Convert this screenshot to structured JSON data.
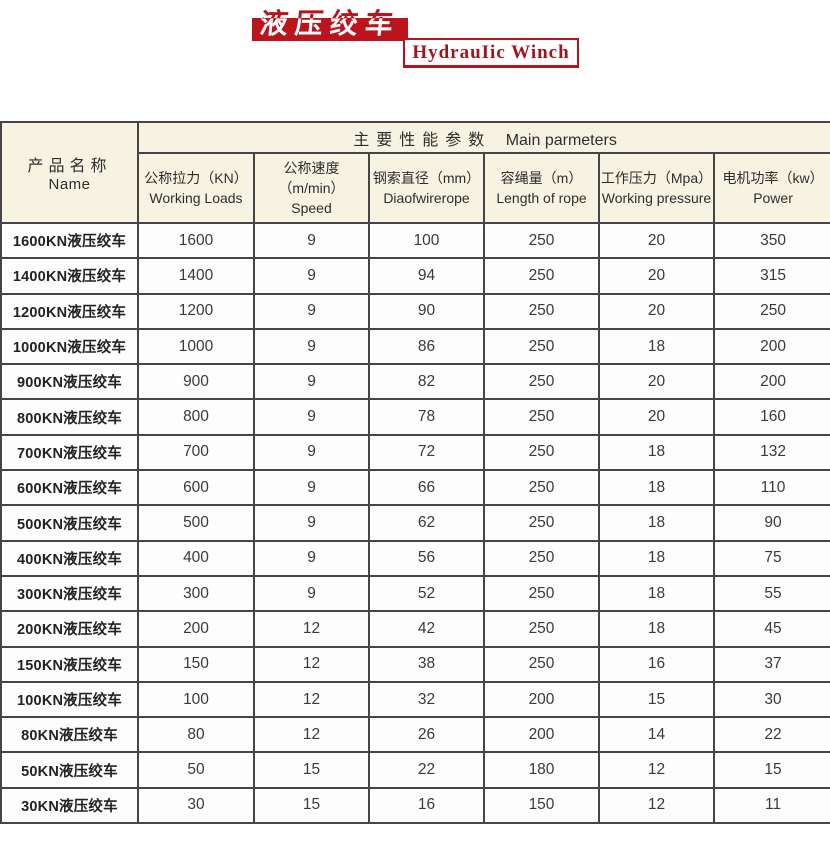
{
  "page": {
    "title_cn": "液压绞车",
    "title_en": "HydrauIic Winch"
  },
  "table": {
    "product_col_header": {
      "cn": "产品名称",
      "en": "Name"
    },
    "group_header": {
      "cn": "主要性能参数",
      "en": "Main parmeters"
    },
    "columns": [
      {
        "cn": "公称拉力（KN）",
        "cn2": "",
        "en": "Working Loads"
      },
      {
        "cn": "公称速度",
        "cn2": "（m/min）",
        "en": "Speed"
      },
      {
        "cn": "钢索直径（mm）",
        "cn2": "",
        "en": "Diaofwirerope"
      },
      {
        "cn": "容绳量（m）",
        "cn2": "",
        "en": "Length of rope"
      },
      {
        "cn": "工作压力（Mpa）",
        "cn2": "",
        "en": "Working pressure"
      },
      {
        "cn": "电机功率（kw）",
        "cn2": "",
        "en": "Power"
      }
    ],
    "rows": [
      {
        "name": "1600KN液压绞车",
        "values": [
          "1600",
          "9",
          "100",
          "250",
          "20",
          "350"
        ]
      },
      {
        "name": "1400KN液压绞车",
        "values": [
          "1400",
          "9",
          "94",
          "250",
          "20",
          "315"
        ]
      },
      {
        "name": "1200KN液压绞车",
        "values": [
          "1200",
          "9",
          "90",
          "250",
          "20",
          "250"
        ]
      },
      {
        "name": "1000KN液压绞车",
        "values": [
          "1000",
          "9",
          "86",
          "250",
          "18",
          "200"
        ]
      },
      {
        "name": "900KN液压绞车",
        "values": [
          "900",
          "9",
          "82",
          "250",
          "20",
          "200"
        ]
      },
      {
        "name": "800KN液压绞车",
        "values": [
          "800",
          "9",
          "78",
          "250",
          "20",
          "160"
        ]
      },
      {
        "name": "700KN液压绞车",
        "values": [
          "700",
          "9",
          "72",
          "250",
          "18",
          "132"
        ]
      },
      {
        "name": "600KN液压绞车",
        "values": [
          "600",
          "9",
          "66",
          "250",
          "18",
          "110"
        ]
      },
      {
        "name": "500KN液压绞车",
        "values": [
          "500",
          "9",
          "62",
          "250",
          "18",
          "90"
        ]
      },
      {
        "name": "400KN液压绞车",
        "values": [
          "400",
          "9",
          "56",
          "250",
          "18",
          "75"
        ]
      },
      {
        "name": "300KN液压绞车",
        "values": [
          "300",
          "9",
          "52",
          "250",
          "18",
          "55"
        ]
      },
      {
        "name": "200KN液压绞车",
        "values": [
          "200",
          "12",
          "42",
          "250",
          "18",
          "45"
        ]
      },
      {
        "name": "150KN液压绞车",
        "values": [
          "150",
          "12",
          "38",
          "250",
          "16",
          "37"
        ]
      },
      {
        "name": "100KN液压绞车",
        "values": [
          "100",
          "12",
          "32",
          "200",
          "15",
          "30"
        ]
      },
      {
        "name": "80KN液压绞车",
        "values": [
          "80",
          "12",
          "26",
          "200",
          "14",
          "22"
        ]
      },
      {
        "name": "50KN液压绞车",
        "values": [
          "50",
          "15",
          "22",
          "180",
          "12",
          "15"
        ]
      },
      {
        "name": "30KN液压绞车",
        "values": [
          "30",
          "15",
          "16",
          "150",
          "12",
          "11"
        ]
      }
    ]
  }
}
